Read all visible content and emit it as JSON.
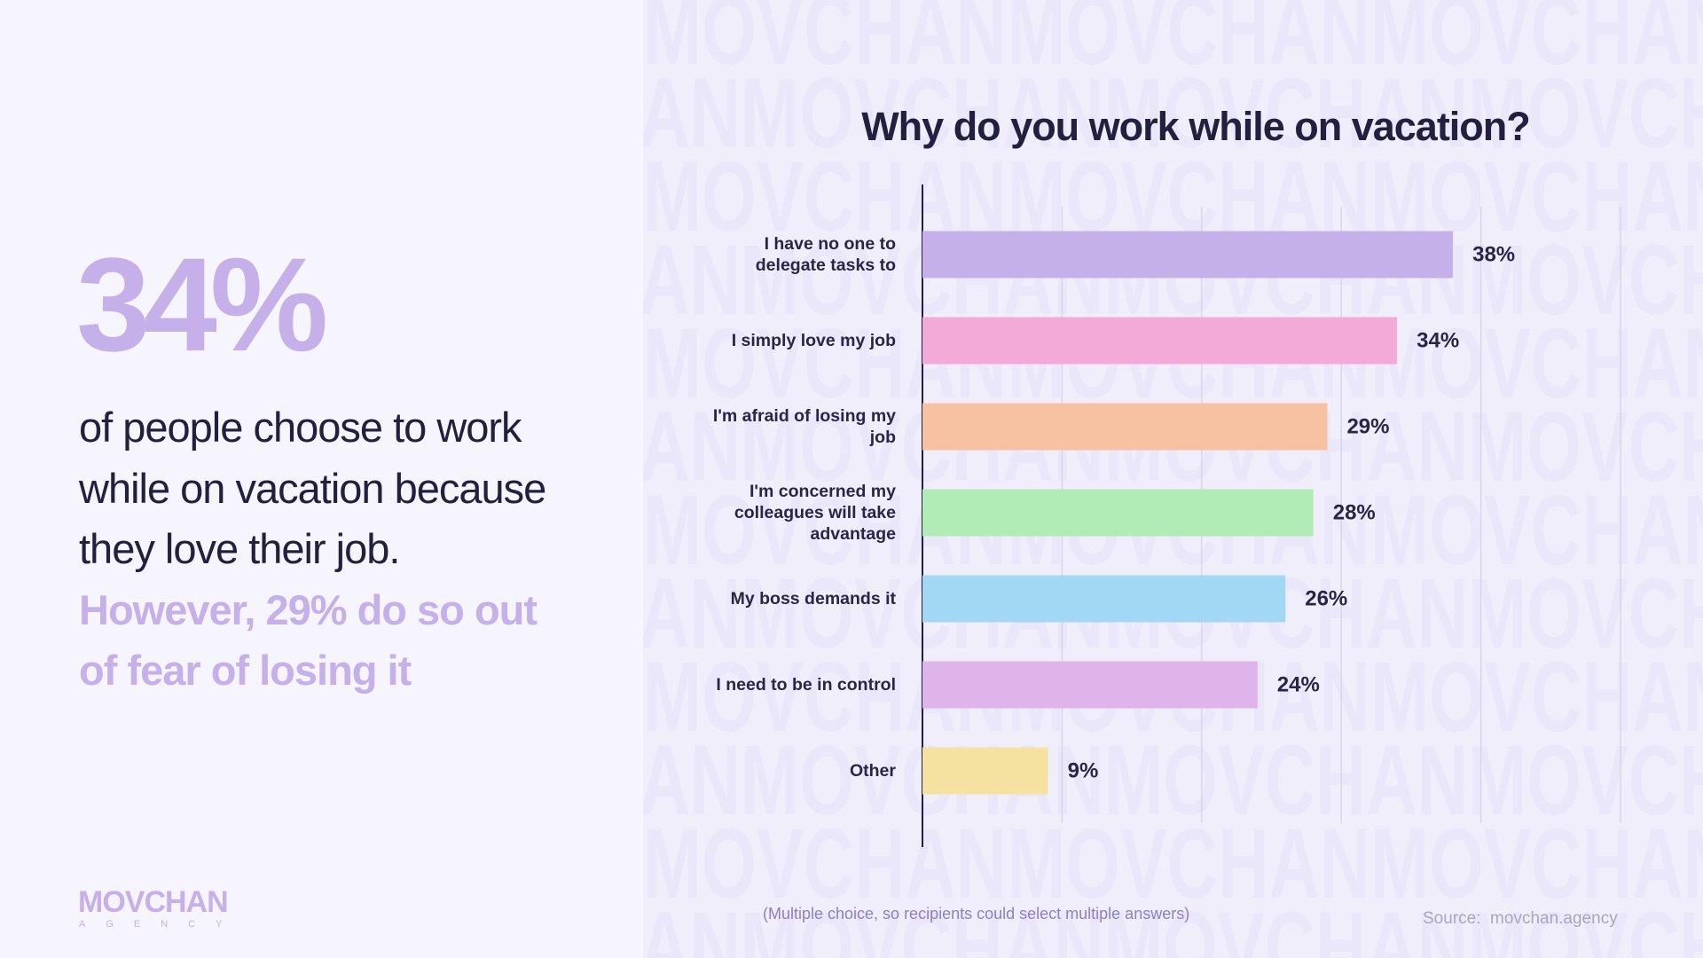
{
  "headline": {
    "stat": "34%",
    "body": "of people choose to work while on vacation because they love their job.",
    "highlight": "However, 29% do so out of fear of losing it"
  },
  "logo": {
    "name": "MOVCHAN",
    "sub": "AGENCY"
  },
  "watermark": "MOVCHAN",
  "footnote": "(Multiple choice, so recipients could select multiple answers)",
  "source": {
    "label": "Source:",
    "site": "movchan.agency"
  },
  "chart_data": {
    "type": "hbar",
    "title": "Why do you work while on vacation?",
    "categories": [
      "I have no one to delegate tasks to",
      "I simply love my job",
      "I'm afraid of losing my job",
      "I'm concerned my colleagues will take advantage",
      "My boss demands it",
      "I need to be in control",
      "Other"
    ],
    "values": [
      38,
      34,
      29,
      28,
      26,
      24,
      9
    ],
    "value_labels": [
      "38%",
      "34%",
      "29%",
      "28%",
      "26%",
      "24%",
      "9%"
    ],
    "colors": [
      "#c5b0ea",
      "#f2abd9",
      "#f7c2a2",
      "#b1ebb6",
      "#a3d8f5",
      "#dfb4ea",
      "#f5e2a0"
    ],
    "xlim": [
      0,
      50
    ],
    "xticks": [
      0,
      10,
      20,
      30,
      40,
      50
    ],
    "grid": true
  }
}
